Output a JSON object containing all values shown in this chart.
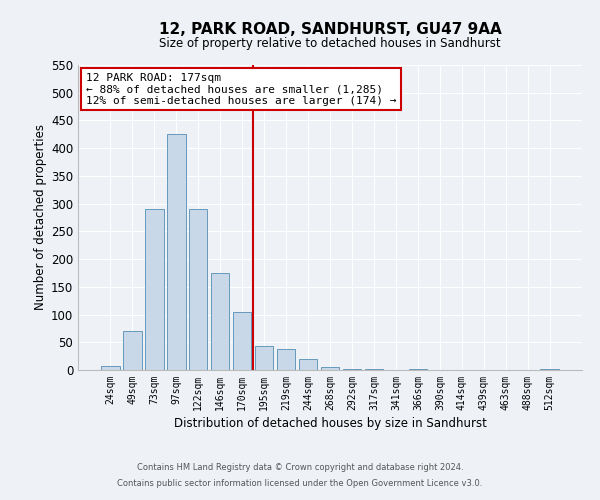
{
  "title": "12, PARK ROAD, SANDHURST, GU47 9AA",
  "subtitle": "Size of property relative to detached houses in Sandhurst",
  "xlabel": "Distribution of detached houses by size in Sandhurst",
  "ylabel": "Number of detached properties",
  "bar_labels": [
    "24sqm",
    "49sqm",
    "73sqm",
    "97sqm",
    "122sqm",
    "146sqm",
    "170sqm",
    "195sqm",
    "219sqm",
    "244sqm",
    "268sqm",
    "292sqm",
    "317sqm",
    "341sqm",
    "366sqm",
    "390sqm",
    "414sqm",
    "439sqm",
    "463sqm",
    "488sqm",
    "512sqm"
  ],
  "bar_values": [
    8,
    70,
    290,
    425,
    290,
    175,
    105,
    43,
    37,
    19,
    5,
    2,
    1,
    0,
    1,
    0,
    0,
    0,
    0,
    0,
    2
  ],
  "bar_color": "#c8d8e8",
  "bar_edgecolor": "#6699bb",
  "ylim": [
    0,
    550
  ],
  "yticks": [
    0,
    50,
    100,
    150,
    200,
    250,
    300,
    350,
    400,
    450,
    500,
    550
  ],
  "vline_x": 6.5,
  "vline_color": "#cc0000",
  "annotation_title": "12 PARK ROAD: 177sqm",
  "annotation_line1": "← 88% of detached houses are smaller (1,285)",
  "annotation_line2": "12% of semi-detached houses are larger (174) →",
  "annotation_box_color": "#cc0000",
  "bg_color": "#eef2f7",
  "grid_color": "#ffffff",
  "footer1": "Contains HM Land Registry data © Crown copyright and database right 2024.",
  "footer2": "Contains public sector information licensed under the Open Government Licence v3.0."
}
